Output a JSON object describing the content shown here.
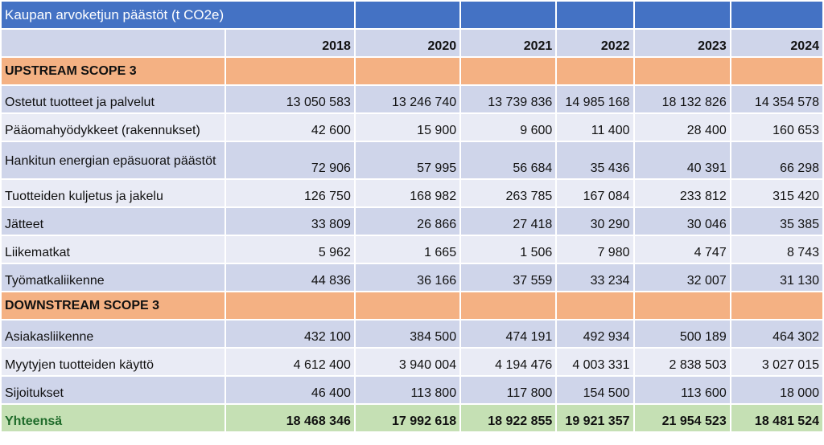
{
  "table": {
    "title": "Kaupan arvoketjun päästöt (t CO2e)",
    "years": [
      "2018",
      "2020",
      "2021",
      "2022",
      "2023",
      "2024"
    ],
    "upstream_label": "UPSTREAM SCOPE 3",
    "downstream_label": "DOWNSTREAM SCOPE 3",
    "upstream_rows": [
      {
        "label": "Ostetut tuotteet ja palvelut",
        "values": [
          "13 050 583",
          "13 246 740",
          "13 739 836",
          "14 985 168",
          "18 132 826",
          "14 354 578"
        ]
      },
      {
        "label": "Pääomahyödykkeet (rakennukset)",
        "values": [
          "42 600",
          "15 900",
          "9 600",
          "11 400",
          "28 400",
          "160 653"
        ]
      },
      {
        "label": "Hankitun energian epäsuorat päästöt",
        "values": [
          "72 906",
          "57 995",
          "56 684",
          "35 436",
          "40 391",
          "66 298"
        ]
      },
      {
        "label": "Tuotteiden kuljetus ja jakelu",
        "values": [
          "126 750",
          "168 982",
          "263 785",
          "167 084",
          "233 812",
          "315 420"
        ]
      },
      {
        "label": "Jätteet",
        "values": [
          "33 809",
          "26 866",
          "27 418",
          "30 290",
          "30 046",
          "35 385"
        ]
      },
      {
        "label": "Liikematkat",
        "values": [
          "5 962",
          "1 665",
          "1 506",
          "7 980",
          "4 747",
          "8 743"
        ]
      },
      {
        "label": "Työmatkaliikenne",
        "values": [
          "44 836",
          "36 166",
          "37 559",
          "33 234",
          "32 007",
          "31 130"
        ]
      }
    ],
    "downstream_rows": [
      {
        "label": "Asiakasliikenne",
        "values": [
          "432 100",
          "384 500",
          "474 191",
          "492 934",
          "500 189",
          "464 302"
        ]
      },
      {
        "label": "Myytyjen tuotteiden käyttö",
        "values": [
          "4 612 400",
          "3 940 004",
          "4 194 476",
          "4 003 331",
          "2 838 503",
          "3 027 015"
        ]
      },
      {
        "label": "Sijoitukset",
        "values": [
          "46 400",
          "113 800",
          "117 800",
          "154 500",
          "113 600",
          "18 000"
        ]
      }
    ],
    "total": {
      "label": "Yhteensä",
      "values": [
        "18 468 346",
        "17 992 618",
        "18 922 855",
        "19 921 357",
        "21 954 523",
        "18 481 524"
      ]
    }
  }
}
